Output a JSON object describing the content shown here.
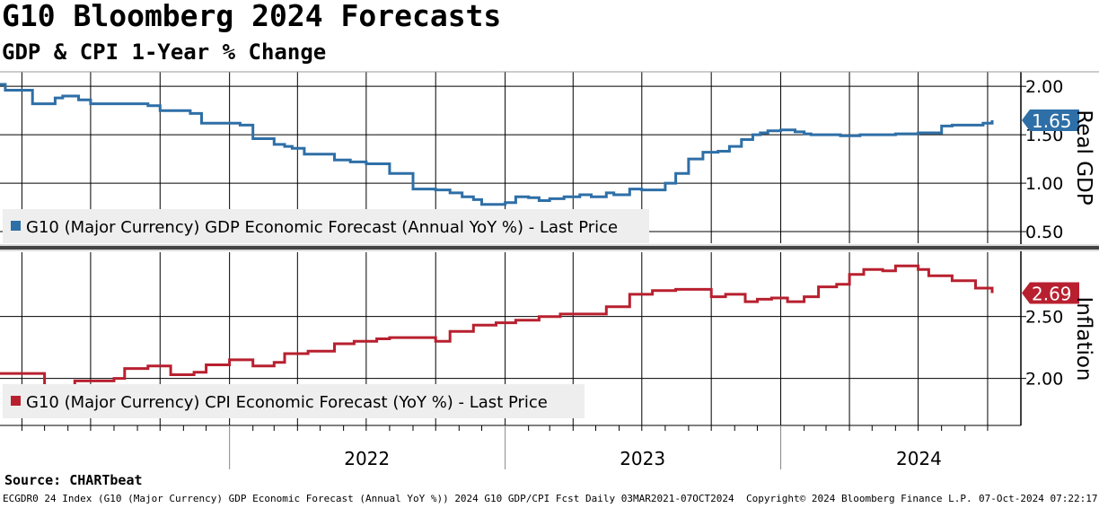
{
  "header": {
    "title": "G10 Bloomberg 2024 Forecasts",
    "subtitle": "GDP & CPI 1-Year % Change"
  },
  "source": "Source: CHARTbeat",
  "footer": {
    "left": "ECGDR0 24 Index (G10 (Major Currency) GDP Economic Forecast (Annual YoY %)) 2024 G10 GDP/CPI Fcst  Daily 03MAR2021-07OCT2024",
    "copyright": "Copyright© 2024 Bloomberg Finance L.P.",
    "timestamp": "07-Oct-2024 07:22:17"
  },
  "colors": {
    "gdp": "#2e6fa7",
    "cpi": "#b8202f",
    "grid": "#000000",
    "legend_bg": "#eeeeee"
  },
  "chart_data": [
    {
      "type": "line",
      "panel": "top",
      "ylabel": "Real GDP",
      "ylim": [
        0.38,
        2.15
      ],
      "yticks": [
        0.5,
        1.0,
        1.5,
        2.0
      ],
      "ytick_labels": [
        "0.50",
        "1.00",
        "1.50",
        "2.00"
      ],
      "last_value": 1.65,
      "last_label": "1.65",
      "legend": "G10 (Major Currency) GDP Economic Forecast (Annual YoY %) - Last Price",
      "series": [
        {
          "name": "G10 (Major Currency) GDP Economic Forecast (Annual YoY %) - Last Price",
          "x": [
            "2021-03-03",
            "2021-03-10",
            "2021-04-10",
            "2021-04-15",
            "2021-05-15",
            "2021-05-25",
            "2021-06-15",
            "2021-07-01",
            "2021-09-15",
            "2021-10-01",
            "2021-11-10",
            "2021-11-25",
            "2022-01-15",
            "2022-02-01",
            "2022-03-01",
            "2022-03-15",
            "2022-03-25",
            "2022-04-10",
            "2022-05-01",
            "2022-05-20",
            "2022-06-10",
            "2022-07-01",
            "2022-08-01",
            "2022-09-01",
            "2022-10-01",
            "2022-10-20",
            "2022-11-05",
            "2022-11-20",
            "2022-12-01",
            "2023-01-01",
            "2023-01-15",
            "2023-02-01",
            "2023-02-15",
            "2023-03-01",
            "2023-03-20",
            "2023-04-10",
            "2023-04-25",
            "2023-05-15",
            "2023-05-25",
            "2023-06-15",
            "2023-07-01",
            "2023-08-01",
            "2023-08-15",
            "2023-09-01",
            "2023-09-20",
            "2023-10-10",
            "2023-10-25",
            "2023-11-10",
            "2023-11-25",
            "2023-12-05",
            "2023-12-15",
            "2024-01-01",
            "2024-01-20",
            "2024-02-01",
            "2024-02-10",
            "2024-03-01",
            "2024-03-20",
            "2024-04-15",
            "2024-05-15",
            "2024-06-01",
            "2024-07-01",
            "2024-08-01",
            "2024-08-15",
            "2024-09-01",
            "2024-09-25",
            "2024-10-07"
          ],
          "values": [
            2.02,
            1.96,
            1.96,
            1.82,
            1.88,
            1.9,
            1.86,
            1.82,
            1.8,
            1.75,
            1.72,
            1.62,
            1.6,
            1.46,
            1.4,
            1.38,
            1.36,
            1.3,
            1.3,
            1.24,
            1.22,
            1.2,
            1.1,
            0.94,
            0.93,
            0.9,
            0.86,
            0.83,
            0.78,
            0.8,
            0.86,
            0.85,
            0.82,
            0.84,
            0.86,
            0.88,
            0.86,
            0.9,
            0.88,
            0.94,
            0.93,
            1.0,
            1.1,
            1.25,
            1.32,
            1.33,
            1.38,
            1.45,
            1.5,
            1.52,
            1.54,
            1.55,
            1.53,
            1.51,
            1.5,
            1.5,
            1.49,
            1.5,
            1.5,
            1.51,
            1.52,
            1.59,
            1.6,
            1.6,
            1.62,
            1.65
          ]
        }
      ]
    },
    {
      "type": "line",
      "panel": "bottom",
      "ylabel": "Inflation",
      "ylim": [
        1.62,
        3.02
      ],
      "yticks": [
        2.0,
        2.5
      ],
      "ytick_labels": [
        "2.00",
        "2.50"
      ],
      "last_value": 2.69,
      "last_label": "2.69",
      "legend": "G10 (Major Currency) CPI Economic Forecast (YoY %) - Last Price",
      "series": [
        {
          "name": "G10 (Major Currency) CPI Economic Forecast (YoY %) - Last Price",
          "x": [
            "2021-03-03",
            "2021-04-15",
            "2021-05-01",
            "2021-05-20",
            "2021-06-10",
            "2021-08-01",
            "2021-08-15",
            "2021-09-15",
            "2021-10-15",
            "2021-11-15",
            "2021-12-01",
            "2022-01-01",
            "2022-02-01",
            "2022-03-01",
            "2022-03-15",
            "2022-04-15",
            "2022-05-20",
            "2022-06-15",
            "2022-07-15",
            "2022-08-01",
            "2022-09-01",
            "2022-10-01",
            "2022-10-20",
            "2022-11-20",
            "2022-12-20",
            "2023-01-15",
            "2023-02-15",
            "2023-03-15",
            "2023-04-15",
            "2023-05-15",
            "2023-06-15",
            "2023-07-15",
            "2023-08-15",
            "2023-09-15",
            "2023-10-01",
            "2023-10-20",
            "2023-11-15",
            "2023-12-01",
            "2023-12-20",
            "2024-01-10",
            "2024-02-01",
            "2024-02-20",
            "2024-03-15",
            "2024-04-01",
            "2024-04-20",
            "2024-05-15",
            "2024-06-01",
            "2024-06-15",
            "2024-07-01",
            "2024-07-15",
            "2024-08-15",
            "2024-09-15",
            "2024-10-07"
          ],
          "values": [
            2.04,
            2.04,
            1.9,
            1.94,
            1.98,
            2.0,
            2.08,
            2.1,
            2.03,
            2.05,
            2.11,
            2.15,
            2.1,
            2.13,
            2.2,
            2.22,
            2.28,
            2.3,
            2.32,
            2.33,
            2.33,
            2.3,
            2.38,
            2.43,
            2.45,
            2.47,
            2.5,
            2.52,
            2.52,
            2.58,
            2.68,
            2.71,
            2.72,
            2.72,
            2.66,
            2.68,
            2.62,
            2.64,
            2.65,
            2.62,
            2.66,
            2.74,
            2.76,
            2.84,
            2.88,
            2.87,
            2.91,
            2.91,
            2.88,
            2.83,
            2.79,
            2.73,
            2.69
          ]
        }
      ]
    }
  ],
  "xaxis": {
    "labels": [
      {
        "text": "2022",
        "date": "2022-07-02"
      },
      {
        "text": "2023",
        "date": "2023-07-02"
      },
      {
        "text": "2024",
        "date": "2024-07-02"
      }
    ]
  }
}
